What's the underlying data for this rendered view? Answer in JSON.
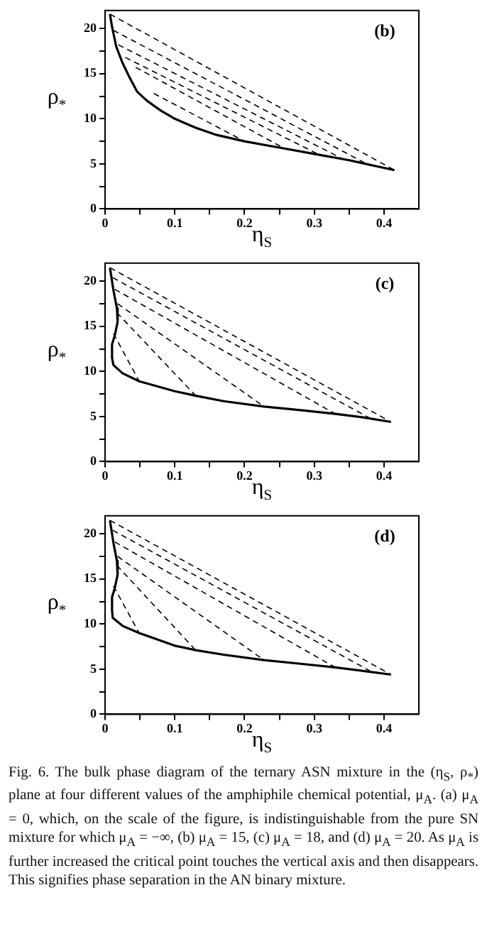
{
  "chart_data": [
    {
      "type": "line",
      "title": "(b)",
      "xlabel": "η$_{S}$",
      "ylabel": "ρ$_{*}$",
      "marker": "none",
      "xlim": [
        0,
        0.45
      ],
      "ylim": [
        0,
        22
      ],
      "xticks": [
        0,
        {
          "value": 0.05,
          "label": null
        },
        0.1,
        {
          "value": 0.15,
          "label": null
        },
        0.2,
        {
          "value": 0.25,
          "label": null
        },
        0.3,
        {
          "value": 0.35,
          "label": null
        },
        0.4
      ],
      "yticks": [
        0,
        {
          "value": 2.5,
          "label": null
        },
        5,
        {
          "value": 7.5,
          "label": null
        },
        10,
        {
          "value": 12.5,
          "label": null
        },
        15,
        {
          "value": 17.5,
          "label": null
        },
        20
      ],
      "series": [
        {
          "color": "#000000",
          "line_style": "solid",
          "x": [
            0.007,
            0.01,
            0.016,
            0.025,
            0.035,
            0.046,
            0.06,
            0.08,
            0.1,
            0.13,
            0.16,
            0.2,
            0.25,
            0.3,
            0.35,
            0.415
          ],
          "values": [
            21.6,
            20.2,
            18,
            16.2,
            14.6,
            13,
            12,
            10.9,
            10,
            9,
            8.2,
            7.5,
            6.8,
            6.1,
            5.4,
            4.3
          ]
        },
        {
          "color": "#000000",
          "line_style": "dashed",
          "x": [
            0.007,
            0.415
          ],
          "values": [
            21.6,
            4.3
          ]
        },
        {
          "color": "#000000",
          "line_style": "dashed",
          "x": [
            0.012,
            0.38
          ],
          "values": [
            19.8,
            4.8
          ]
        },
        {
          "color": "#000000",
          "line_style": "dashed",
          "x": [
            0.019,
            0.347
          ],
          "values": [
            18.2,
            5.3
          ]
        },
        {
          "color": "#000000",
          "line_style": "dashed",
          "x": [
            0.029,
            0.31
          ],
          "values": [
            16.8,
            5.9
          ]
        },
        {
          "color": "#000000",
          "line_style": "dashed",
          "x": [
            0.044,
            0.255
          ],
          "values": [
            15.7,
            6.8
          ]
        },
        {
          "color": "#000000",
          "line_style": "dashed",
          "x": [
            0.07,
            0.2
          ],
          "values": [
            12.8,
            7.5
          ]
        }
      ]
    },
    {
      "type": "line",
      "title": "(c)",
      "xlabel": "η$_{S}$",
      "ylabel": "ρ$_{*}$",
      "marker": "none",
      "xlim": [
        0,
        0.45
      ],
      "ylim": [
        0,
        22
      ],
      "xticks": [
        0,
        {
          "value": 0.05,
          "label": null
        },
        0.1,
        {
          "value": 0.15,
          "label": null
        },
        0.2,
        {
          "value": 0.25,
          "label": null
        },
        0.3,
        {
          "value": 0.35,
          "label": null
        },
        0.4
      ],
      "yticks": [
        0,
        {
          "value": 2.5,
          "label": null
        },
        5,
        {
          "value": 7.5,
          "label": null
        },
        10,
        {
          "value": 12.5,
          "label": null
        },
        15,
        {
          "value": 17.5,
          "label": null
        },
        20
      ],
      "series": [
        {
          "color": "#000000",
          "line_style": "solid",
          "x": [
            0.007,
            0.012,
            0.017,
            0.018,
            0.014,
            0.01,
            0.01,
            0.012,
            0.025,
            0.049,
            0.1,
            0.13,
            0.17,
            0.228,
            0.28,
            0.33,
            0.37,
            0.41
          ],
          "values": [
            21.5,
            19,
            17,
            15.5,
            14,
            13,
            11.5,
            10.7,
            9.8,
            8.9,
            7.8,
            7.3,
            6.7,
            6.1,
            5.7,
            5.3,
            4.9,
            4.4
          ]
        },
        {
          "color": "#000000",
          "line_style": "dashed",
          "x": [
            0.007,
            0.41
          ],
          "values": [
            21.5,
            4.4
          ]
        },
        {
          "color": "#000000",
          "line_style": "dashed",
          "x": [
            0.011,
            0.38
          ],
          "values": [
            20.4,
            4.8
          ]
        },
        {
          "color": "#000000",
          "line_style": "dashed",
          "x": [
            0.014,
            0.33
          ],
          "values": [
            19.1,
            5.3
          ]
        },
        {
          "color": "#000000",
          "line_style": "dashed",
          "x": [
            0.018,
            0.228
          ],
          "values": [
            17.5,
            6.1
          ]
        },
        {
          "color": "#000000",
          "line_style": "dashed",
          "x": [
            0.017,
            0.13
          ],
          "values": [
            16.5,
            7.3
          ]
        },
        {
          "color": "#000000",
          "line_style": "dashed",
          "x": [
            0.012,
            0.049
          ],
          "values": [
            14.2,
            8.9
          ]
        }
      ]
    },
    {
      "type": "line",
      "title": "(d)",
      "xlabel": "η$_{S}$",
      "ylabel": "ρ$_{*}$",
      "marker": "none",
      "xlim": [
        0,
        0.45
      ],
      "ylim": [
        0,
        22
      ],
      "xticks": [
        0,
        {
          "value": 0.05,
          "label": null
        },
        0.1,
        {
          "value": 0.15,
          "label": null
        },
        0.2,
        {
          "value": 0.25,
          "label": null
        },
        0.3,
        {
          "value": 0.35,
          "label": null
        },
        0.4
      ],
      "yticks": [
        0,
        {
          "value": 2.5,
          "label": null
        },
        5,
        {
          "value": 7.5,
          "label": null
        },
        10,
        {
          "value": 12.5,
          "label": null
        },
        15,
        {
          "value": 17.5,
          "label": null
        },
        20
      ],
      "annotations": [
        "Fig. 6. The bulk phase diagram of the ternary ASN mixture in the (η$_{S}$, ρ$_{*}$) plane at four different values of the amphiphile chemical potential, μ$_{A}$. (a) μ$_{A}$ = 0, which, on the scale of the figure, is indistinguishable from the pure SN mixture for which μ$_{A}$ = −∞, (b) μ$_{A}$ = 15, (c) μ$_{A}$ = 18, and (d) μ$_{A}$ = 20. As μ$_{A}$ is further increased the critical point touches the vertical axis and then disappears. This signifies phase separation in the AN binary mixture."
      ],
      "series": [
        {
          "color": "#000000",
          "line_style": "solid",
          "x": [
            0.007,
            0.012,
            0.017,
            0.018,
            0.014,
            0.01,
            0.01,
            0.011,
            0.025,
            0.049,
            0.1,
            0.13,
            0.17,
            0.228,
            0.28,
            0.33,
            0.37,
            0.41
          ],
          "values": [
            21.5,
            19,
            17,
            15.5,
            14,
            13,
            11.5,
            10.7,
            9.8,
            9,
            7.6,
            7.1,
            6.6,
            6,
            5.6,
            5.2,
            4.8,
            4.4
          ]
        },
        {
          "color": "#000000",
          "line_style": "dashed",
          "x": [
            0.007,
            0.41
          ],
          "values": [
            21.5,
            4.4
          ]
        },
        {
          "color": "#000000",
          "line_style": "dashed",
          "x": [
            0.011,
            0.38
          ],
          "values": [
            20.4,
            4.8
          ]
        },
        {
          "color": "#000000",
          "line_style": "dashed",
          "x": [
            0.014,
            0.33
          ],
          "values": [
            19.1,
            5.2
          ]
        },
        {
          "color": "#000000",
          "line_style": "dashed",
          "x": [
            0.018,
            0.228
          ],
          "values": [
            17.5,
            6
          ]
        },
        {
          "color": "#000000",
          "line_style": "dashed",
          "x": [
            0.017,
            0.13
          ],
          "values": [
            16.5,
            7.1
          ]
        },
        {
          "color": "#000000",
          "line_style": "dashed",
          "x": [
            0.012,
            0.049
          ],
          "values": [
            14.2,
            9
          ]
        }
      ]
    }
  ]
}
